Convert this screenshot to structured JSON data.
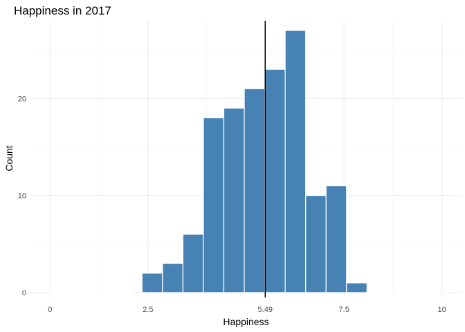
{
  "chart_data": {
    "type": "bar",
    "title": "Happiness in 2017",
    "xlabel": "Happiness",
    "ylabel": "Count",
    "xlim": [
      -0.5,
      10.5
    ],
    "ylim": [
      -0.5,
      28
    ],
    "bin_width": 0.5217,
    "bins": [
      {
        "start": 0.0,
        "end": 0.5217,
        "count": 0
      },
      {
        "start": 0.5217,
        "end": 1.0435,
        "count": 0
      },
      {
        "start": 1.0435,
        "end": 1.5652,
        "count": 0
      },
      {
        "start": 1.5652,
        "end": 2.087,
        "count": 0
      },
      {
        "start": 2.3478,
        "end": 2.8696,
        "count": 2
      },
      {
        "start": 2.8696,
        "end": 3.3913,
        "count": 3
      },
      {
        "start": 3.3913,
        "end": 3.913,
        "count": 6
      },
      {
        "start": 3.913,
        "end": 4.4348,
        "count": 18
      },
      {
        "start": 4.4348,
        "end": 4.9565,
        "count": 19
      },
      {
        "start": 4.9565,
        "end": 5.4783,
        "count": 21
      },
      {
        "start": 5.4783,
        "end": 6.0,
        "count": 23
      },
      {
        "start": 6.0,
        "end": 6.5217,
        "count": 27
      },
      {
        "start": 6.5217,
        "end": 7.0435,
        "count": 10
      },
      {
        "start": 7.0435,
        "end": 7.5652,
        "count": 11
      },
      {
        "start": 7.5652,
        "end": 8.087,
        "count": 1
      },
      {
        "start": 8.087,
        "end": 8.6087,
        "count": 0
      },
      {
        "start": 8.6087,
        "end": 9.1304,
        "count": 0
      },
      {
        "start": 9.1304,
        "end": 9.6522,
        "count": 0
      },
      {
        "start": 9.6522,
        "end": 10.0,
        "count": 0
      }
    ],
    "mean_line": 5.49,
    "x_ticks": [
      {
        "value": 0,
        "label": "0"
      },
      {
        "value": 2.5,
        "label": "2.5"
      },
      {
        "value": 5.49,
        "label": "5.49"
      },
      {
        "value": 7.5,
        "label": "7.5"
      },
      {
        "value": 10,
        "label": "10"
      }
    ],
    "y_ticks": [
      {
        "value": 0,
        "label": "0"
      },
      {
        "value": 10,
        "label": "10"
      },
      {
        "value": 20,
        "label": "20"
      }
    ],
    "bar_color": "#4682b4",
    "mean_line_color": "#000000",
    "grid": true
  }
}
